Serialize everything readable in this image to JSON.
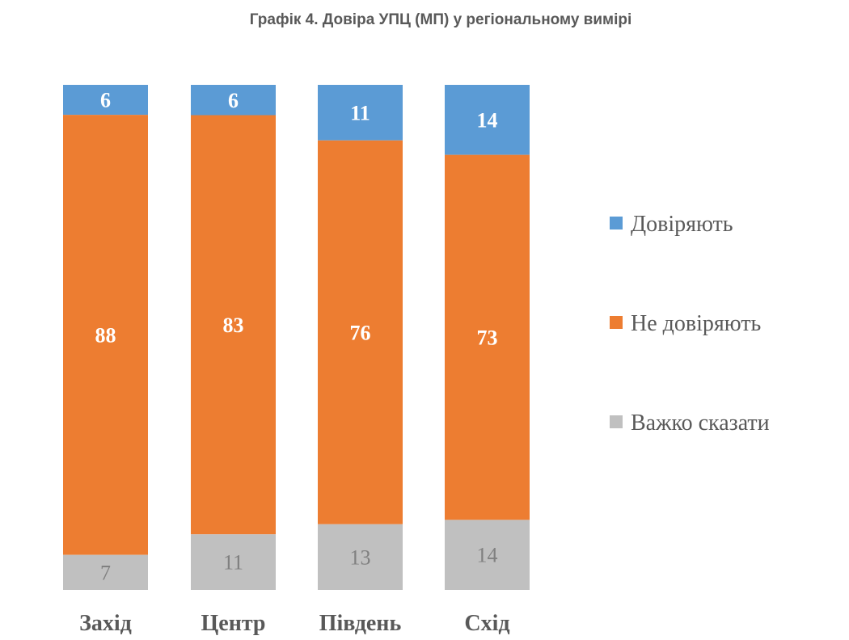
{
  "chart_data": {
    "type": "bar",
    "stacked": true,
    "title": "Графік 4. Довіра УПЦ (МП) у регіональному вимірі",
    "categories": [
      "Захід",
      "Центр",
      "Південь",
      "Схід"
    ],
    "series": [
      {
        "name": "Довіряють",
        "values": [
          6,
          6,
          11,
          14
        ],
        "color": "#5b9bd5"
      },
      {
        "name": "Не довіряють",
        "values": [
          88,
          83,
          76,
          73
        ],
        "color": "#ed7d31"
      },
      {
        "name": "Важко сказати",
        "values": [
          7,
          11,
          13,
          14
        ],
        "color": "#c0c0c0"
      }
    ],
    "legend_position": "right",
    "grid": false
  }
}
